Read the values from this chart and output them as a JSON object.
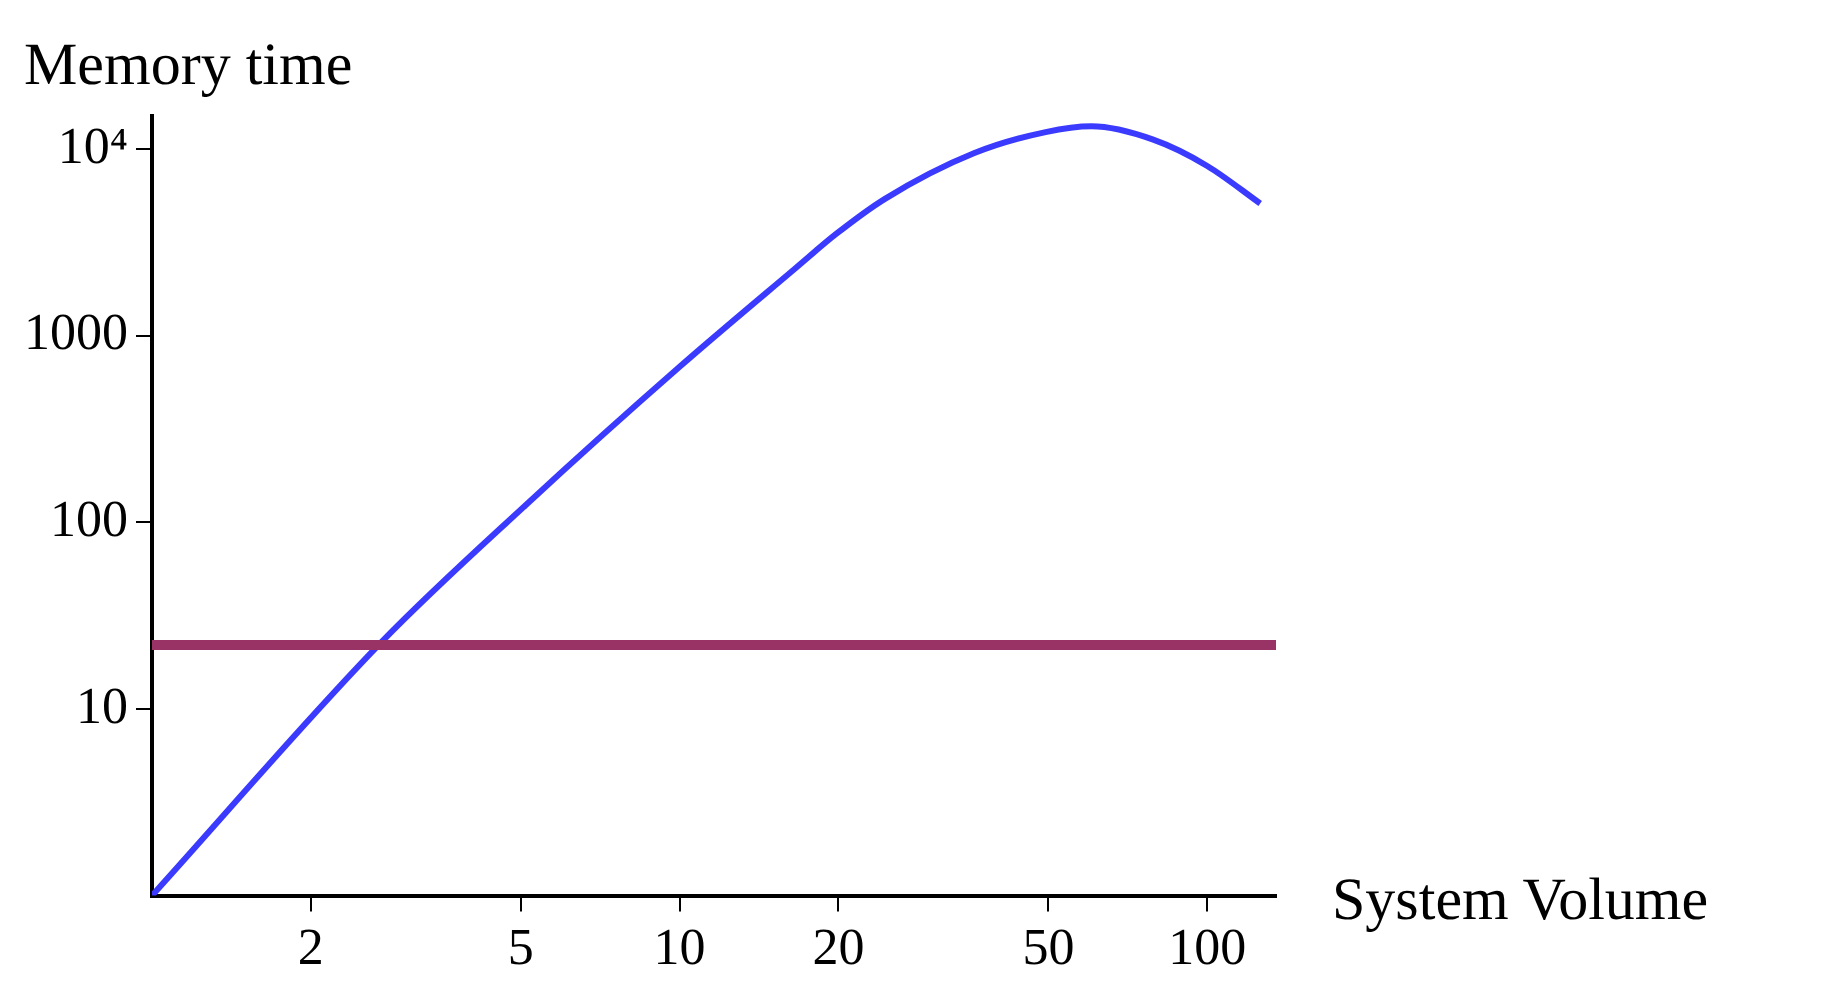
{
  "chart_data": {
    "type": "line",
    "xlabel": "System Volume",
    "ylabel": "Memory time",
    "log": "xy",
    "grid": false,
    "legend": false,
    "marker": "none",
    "line_style": "solid",
    "xlim": [
      1,
      135
    ],
    "xticks": [
      2,
      5,
      10,
      20,
      50,
      100
    ],
    "ylim": [
      1,
      15000
    ],
    "yticks": [
      10,
      100,
      1000,
      {
        "value": 10000,
        "label": "10⁴"
      }
    ],
    "series": [
      {
        "color": "#3b3bff",
        "x": [
          1,
          2.73,
          5.1,
          10,
          16.6,
          19.8,
          24.5,
          36.2,
          49.4,
          60.3,
          79,
          100,
          126
        ],
        "values": [
          1,
          23,
          123,
          680,
          2300,
          3500,
          5400,
          9500,
          12300,
          13200,
          11200,
          8100,
          5100
        ]
      }
    ],
    "ref_lines": [
      {
        "axis": "y",
        "value": 22,
        "color": "#993366"
      }
    ]
  }
}
